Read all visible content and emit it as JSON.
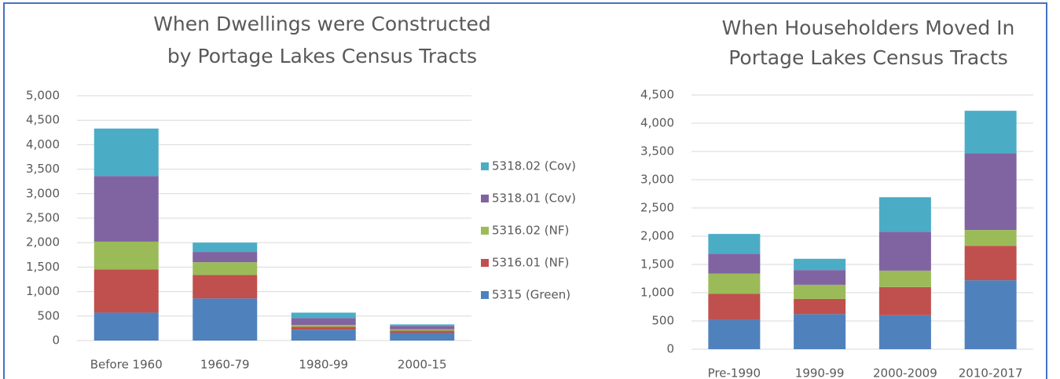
{
  "chart_data": [
    {
      "type": "stacked_bar",
      "title": [
        "When Dwellings were Constructed",
        "by Portage Lakes Census Tracts"
      ],
      "categories": [
        "Before 1960",
        "1960-79",
        "1980-99",
        "2000-15"
      ],
      "series": [
        {
          "name": "5315 (Green)",
          "color": "#4f81bd",
          "values": [
            570,
            860,
            220,
            160
          ]
        },
        {
          "name": "5316.01 (NF)",
          "color": "#c0504d",
          "values": [
            880,
            480,
            60,
            40
          ]
        },
        {
          "name": "5316.02 (NF)",
          "color": "#9bbb59",
          "values": [
            570,
            260,
            40,
            30
          ]
        },
        {
          "name": "5318.01 (Cov)",
          "color": "#8064a2",
          "values": [
            1340,
            210,
            140,
            70
          ]
        },
        {
          "name": "5318.02 (Cov)",
          "color": "#4bacc6",
          "values": [
            970,
            190,
            110,
            30
          ]
        }
      ],
      "ylim": [
        0,
        5000
      ],
      "yticks": [
        0,
        500,
        {
          "value": 1000,
          "label": "1,000"
        },
        {
          "value": 1500,
          "label": "1,500"
        },
        {
          "value": 2000,
          "label": "2,000"
        },
        {
          "value": 2500,
          "label": "2,500"
        },
        {
          "value": 3000,
          "label": "3,000"
        },
        {
          "value": 3500,
          "label": "3,500"
        },
        {
          "value": 4000,
          "label": "4,000"
        },
        {
          "value": 4500,
          "label": "4,500"
        },
        {
          "value": 5000,
          "label": "5,000"
        }
      ],
      "grid": true,
      "legend": "right"
    },
    {
      "type": "stacked_bar",
      "title": [
        "When Householders Moved In",
        "Portage Lakes Census Tracts"
      ],
      "categories": [
        "Pre-1990",
        "1990-99",
        "2000-2009",
        "2010-2017"
      ],
      "series": [
        {
          "color": "#4f81bd",
          "values": [
            520,
            620,
            600,
            1220
          ]
        },
        {
          "color": "#c0504d",
          "values": [
            460,
            270,
            500,
            610
          ]
        },
        {
          "color": "#9bbb59",
          "values": [
            360,
            250,
            290,
            280
          ]
        },
        {
          "color": "#8064a2",
          "values": [
            350,
            260,
            690,
            1360
          ]
        },
        {
          "color": "#4bacc6",
          "values": [
            350,
            200,
            610,
            750
          ]
        }
      ],
      "ylim": [
        0,
        4500
      ],
      "yticks": [
        0,
        500,
        {
          "value": 1000,
          "label": "1,000"
        },
        {
          "value": 1500,
          "label": "1,500"
        },
        {
          "value": 2000,
          "label": "2,000"
        },
        {
          "value": 2500,
          "label": "2,500"
        },
        {
          "value": 3000,
          "label": "3,000"
        },
        {
          "value": 3500,
          "label": "3,500"
        },
        {
          "value": 4000,
          "label": "4,000"
        },
        {
          "value": 4500,
          "label": "4,500"
        }
      ],
      "grid": true
    }
  ]
}
